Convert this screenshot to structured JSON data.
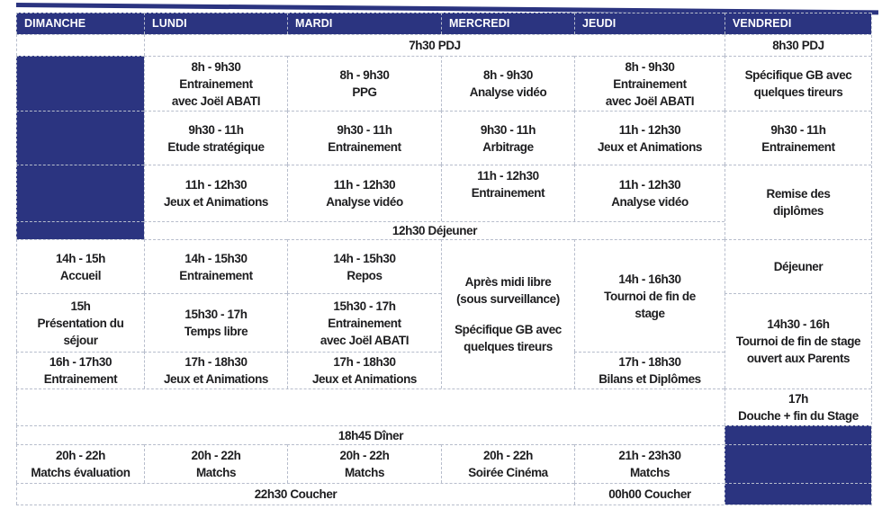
{
  "colors": {
    "navy": "#2b3480",
    "border": "#b7bdcc",
    "text": "#1d1d1f"
  },
  "schedule": {
    "columns": [
      "DIMANCHE",
      "LUNDI",
      "MARDI",
      "MERCREDI",
      "JEUDI",
      "VENDREDI"
    ],
    "cells": [
      {
        "name": "dimanche-pdj-empty",
        "row": 2,
        "col": 1,
        "kind": "empty",
        "lines": []
      },
      {
        "name": "pdj-weekdays",
        "row": 2,
        "col": 2,
        "colspan": 4,
        "lines": [
          "7h30 PDJ"
        ]
      },
      {
        "name": "vendredi-pdj",
        "row": 2,
        "col": 6,
        "lines": [
          "8h30 PDJ"
        ]
      },
      {
        "name": "dimanche-empty-morning-1",
        "row": 3,
        "col": 1,
        "kind": "navy",
        "lines": []
      },
      {
        "name": "lundi-entrainement-8h",
        "row": 3,
        "col": 2,
        "lines": [
          "8h - 9h30",
          "Entrainement",
          "avec Joël ABATI"
        ]
      },
      {
        "name": "mardi-ppg",
        "row": 3,
        "col": 3,
        "lines": [
          "8h - 9h30",
          "PPG"
        ]
      },
      {
        "name": "mercredi-analyse-video-8h",
        "row": 3,
        "col": 4,
        "lines": [
          "8h - 9h30",
          "Analyse vidéo"
        ]
      },
      {
        "name": "jeudi-entrainement-8h",
        "row": 3,
        "col": 5,
        "lines": [
          "8h - 9h30",
          "Entrainement",
          "avec Joël ABATI"
        ]
      },
      {
        "name": "vendredi-specifique-gb",
        "row": 3,
        "col": 6,
        "lines": [
          "Spécifique GB avec",
          "quelques tireurs"
        ]
      },
      {
        "name": "dimanche-empty-morning-2",
        "row": 4,
        "col": 1,
        "kind": "navy",
        "lines": []
      },
      {
        "name": "lundi-etude-strategique",
        "row": 4,
        "col": 2,
        "lines": [
          "9h30 - 11h",
          "Etude stratégique"
        ]
      },
      {
        "name": "mardi-entrainement-9h30",
        "row": 4,
        "col": 3,
        "lines": [
          "9h30 - 11h",
          "Entrainement"
        ]
      },
      {
        "name": "mercredi-arbitrage",
        "row": 4,
        "col": 4,
        "lines": [
          "9h30 - 11h",
          "Arbitrage"
        ]
      },
      {
        "name": "jeudi-jeux-animations-11h",
        "row": 4,
        "col": 5,
        "lines": [
          "11h - 12h30",
          "Jeux et Animations"
        ]
      },
      {
        "name": "vendredi-entrainement-9h30",
        "row": 4,
        "col": 6,
        "lines": [
          "9h30 - 11h",
          "Entrainement"
        ]
      },
      {
        "name": "dimanche-empty-morning-3",
        "row": 5,
        "col": 1,
        "kind": "navy",
        "lines": []
      },
      {
        "name": "lundi-jeux-animations-11h",
        "row": 5,
        "col": 2,
        "lines": [
          "11h - 12h30",
          "Jeux et Animations"
        ]
      },
      {
        "name": "mardi-analyse-video-11h",
        "row": 5,
        "col": 3,
        "lines": [
          "11h - 12h30",
          "Analyse vidéo"
        ]
      },
      {
        "name": "mercredi-entrainement-11h",
        "row": 5,
        "col": 4,
        "valign": "top",
        "lines": [
          "11h - 12h30",
          "Entrainement"
        ]
      },
      {
        "name": "jeudi-analyse-video-11h",
        "row": 5,
        "col": 5,
        "lines": [
          "11h - 12h30",
          "Analyse vidéo"
        ]
      },
      {
        "name": "vendredi-remise-diplomes",
        "row": 5,
        "col": 6,
        "rowspan": 2,
        "lines": [
          "Remise des",
          "diplômes"
        ]
      },
      {
        "name": "dimanche-empty-dejeuner",
        "row": 6,
        "col": 1,
        "kind": "navy",
        "lines": []
      },
      {
        "name": "dejeuner-weekdays",
        "row": 6,
        "col": 2,
        "colspan": 4,
        "lines": [
          "12h30 Déjeuner"
        ]
      },
      {
        "name": "dimanche-accueil",
        "row": 7,
        "col": 1,
        "lines": [
          "14h - 15h",
          "Accueil"
        ]
      },
      {
        "name": "lundi-entrainement-14h",
        "row": 7,
        "col": 2,
        "lines": [
          "14h - 15h30",
          "Entrainement"
        ]
      },
      {
        "name": "mardi-repos",
        "row": 7,
        "col": 3,
        "lines": [
          "14h - 15h30",
          "Repos"
        ]
      },
      {
        "name": "mercredi-apres-midi-libre",
        "row": 7,
        "col": 4,
        "rowspan": 3,
        "lines": [
          "Après midi libre",
          "(sous surveillance)",
          "",
          "Spécifique GB avec",
          "quelques tireurs"
        ]
      },
      {
        "name": "jeudi-tournoi-fin-stage",
        "row": 7,
        "col": 5,
        "rowspan": 2,
        "lines": [
          "14h - 16h30",
          "Tournoi de fin de",
          "stage"
        ]
      },
      {
        "name": "vendredi-dejeuner",
        "row": 7,
        "col": 6,
        "lines": [
          "Déjeuner"
        ]
      },
      {
        "name": "dimanche-presentation-sejour",
        "row": 8,
        "col": 1,
        "lines": [
          "15h",
          "Présentation du",
          "séjour"
        ]
      },
      {
        "name": "lundi-temps-libre",
        "row": 8,
        "col": 2,
        "lines": [
          "15h30 - 17h",
          "Temps libre"
        ]
      },
      {
        "name": "mardi-entrainement-15h30",
        "row": 8,
        "col": 3,
        "lines": [
          "15h30 - 17h",
          "Entrainement",
          "avec Joël ABATI"
        ]
      },
      {
        "name": "vendredi-tournoi-parents",
        "row": 8,
        "col": 6,
        "rowspan": 2,
        "lines": [
          "14h30 - 16h",
          "Tournoi de fin de stage",
          "ouvert aux Parents"
        ]
      },
      {
        "name": "dimanche-entrainement-16h",
        "row": 9,
        "col": 1,
        "lines": [
          "16h - 17h30",
          "Entrainement"
        ]
      },
      {
        "name": "lundi-jeux-animations-17h",
        "row": 9,
        "col": 2,
        "lines": [
          "17h - 18h30",
          "Jeux et Animations"
        ]
      },
      {
        "name": "mardi-jeux-animations-17h",
        "row": 9,
        "col": 3,
        "lines": [
          "17h - 18h30",
          "Jeux et Animations"
        ]
      },
      {
        "name": "jeudi-bilans-diplomes",
        "row": 9,
        "col": 5,
        "lines": [
          "17h - 18h30",
          "Bilans et Diplômes"
        ]
      },
      {
        "name": "douche-row-empty",
        "row": 10,
        "col": 1,
        "colspan": 5,
        "kind": "empty",
        "lines": []
      },
      {
        "name": "vendredi-douche-fin-stage",
        "row": 10,
        "col": 6,
        "lines": [
          "17h",
          "Douche + fin du Stage"
        ]
      },
      {
        "name": "diner-weekdays",
        "row": 11,
        "col": 1,
        "colspan": 5,
        "lines": [
          "18h45 Dîner"
        ]
      },
      {
        "name": "vendredi-empty-evening-1",
        "row": 11,
        "col": 6,
        "kind": "navy",
        "lines": []
      },
      {
        "name": "dimanche-matchs-evaluation",
        "row": 12,
        "col": 1,
        "lines": [
          "20h - 22h",
          "Matchs évaluation"
        ]
      },
      {
        "name": "lundi-matchs-20h",
        "row": 12,
        "col": 2,
        "lines": [
          "20h - 22h",
          "Matchs"
        ]
      },
      {
        "name": "mardi-matchs-20h",
        "row": 12,
        "col": 3,
        "lines": [
          "20h - 22h",
          "Matchs"
        ]
      },
      {
        "name": "mercredi-soiree-cinema",
        "row": 12,
        "col": 4,
        "lines": [
          "20h - 22h",
          "Soirée Cinéma"
        ]
      },
      {
        "name": "jeudi-matchs-21h",
        "row": 12,
        "col": 5,
        "lines": [
          "21h - 23h30",
          "Matchs"
        ]
      },
      {
        "name": "vendredi-empty-evening-2",
        "row": 12,
        "col": 6,
        "kind": "navy",
        "lines": []
      },
      {
        "name": "coucher-dim-mer",
        "row": 13,
        "col": 1,
        "colspan": 4,
        "lines": [
          "22h30 Coucher"
        ]
      },
      {
        "name": "jeudi-coucher",
        "row": 13,
        "col": 5,
        "lines": [
          "00h00 Coucher"
        ]
      },
      {
        "name": "vendredi-empty-evening-3",
        "row": 13,
        "col": 6,
        "kind": "navy",
        "lines": []
      }
    ]
  }
}
